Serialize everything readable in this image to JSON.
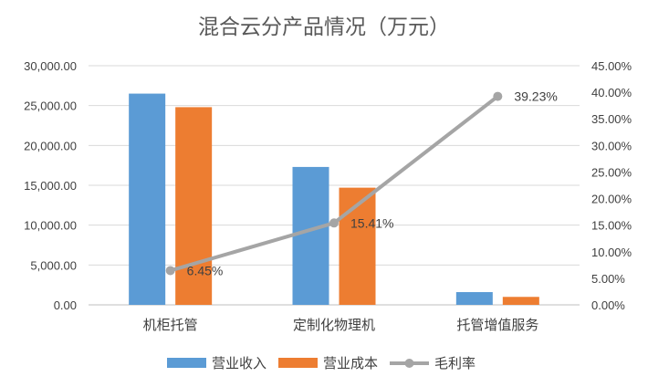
{
  "chart_data": {
    "type": "bar",
    "title": "混合云分产品情况（万元）",
    "categories": [
      "机柜托管",
      "定制化物理机",
      "托管增值服务"
    ],
    "series": [
      {
        "name": "营业收入",
        "type": "bar",
        "axis": "left",
        "color": "#5B9BD5",
        "values": [
          26500,
          17300,
          1600
        ]
      },
      {
        "name": "营业成本",
        "type": "bar",
        "axis": "left",
        "color": "#ED7D31",
        "values": [
          24800,
          14700,
          1000
        ]
      },
      {
        "name": "毛利率",
        "type": "line",
        "axis": "right",
        "color": "#A5A5A5",
        "values": [
          6.45,
          15.41,
          39.23
        ],
        "labels": [
          "6.45%",
          "15.41%",
          "39.23%"
        ]
      }
    ],
    "ylim_left": [
      0,
      30000
    ],
    "yticks_left": [
      "0.00",
      "5,000.00",
      "10,000.00",
      "15,000.00",
      "20,000.00",
      "25,000.00",
      "30,000.00"
    ],
    "ylim_right": [
      0,
      45
    ],
    "yticks_right": [
      "0.00%",
      "5.00%",
      "10.00%",
      "15.00%",
      "20.00%",
      "25.00%",
      "30.00%",
      "35.00%",
      "40.00%",
      "45.00%"
    ],
    "grid": true,
    "legend": "bottom"
  }
}
